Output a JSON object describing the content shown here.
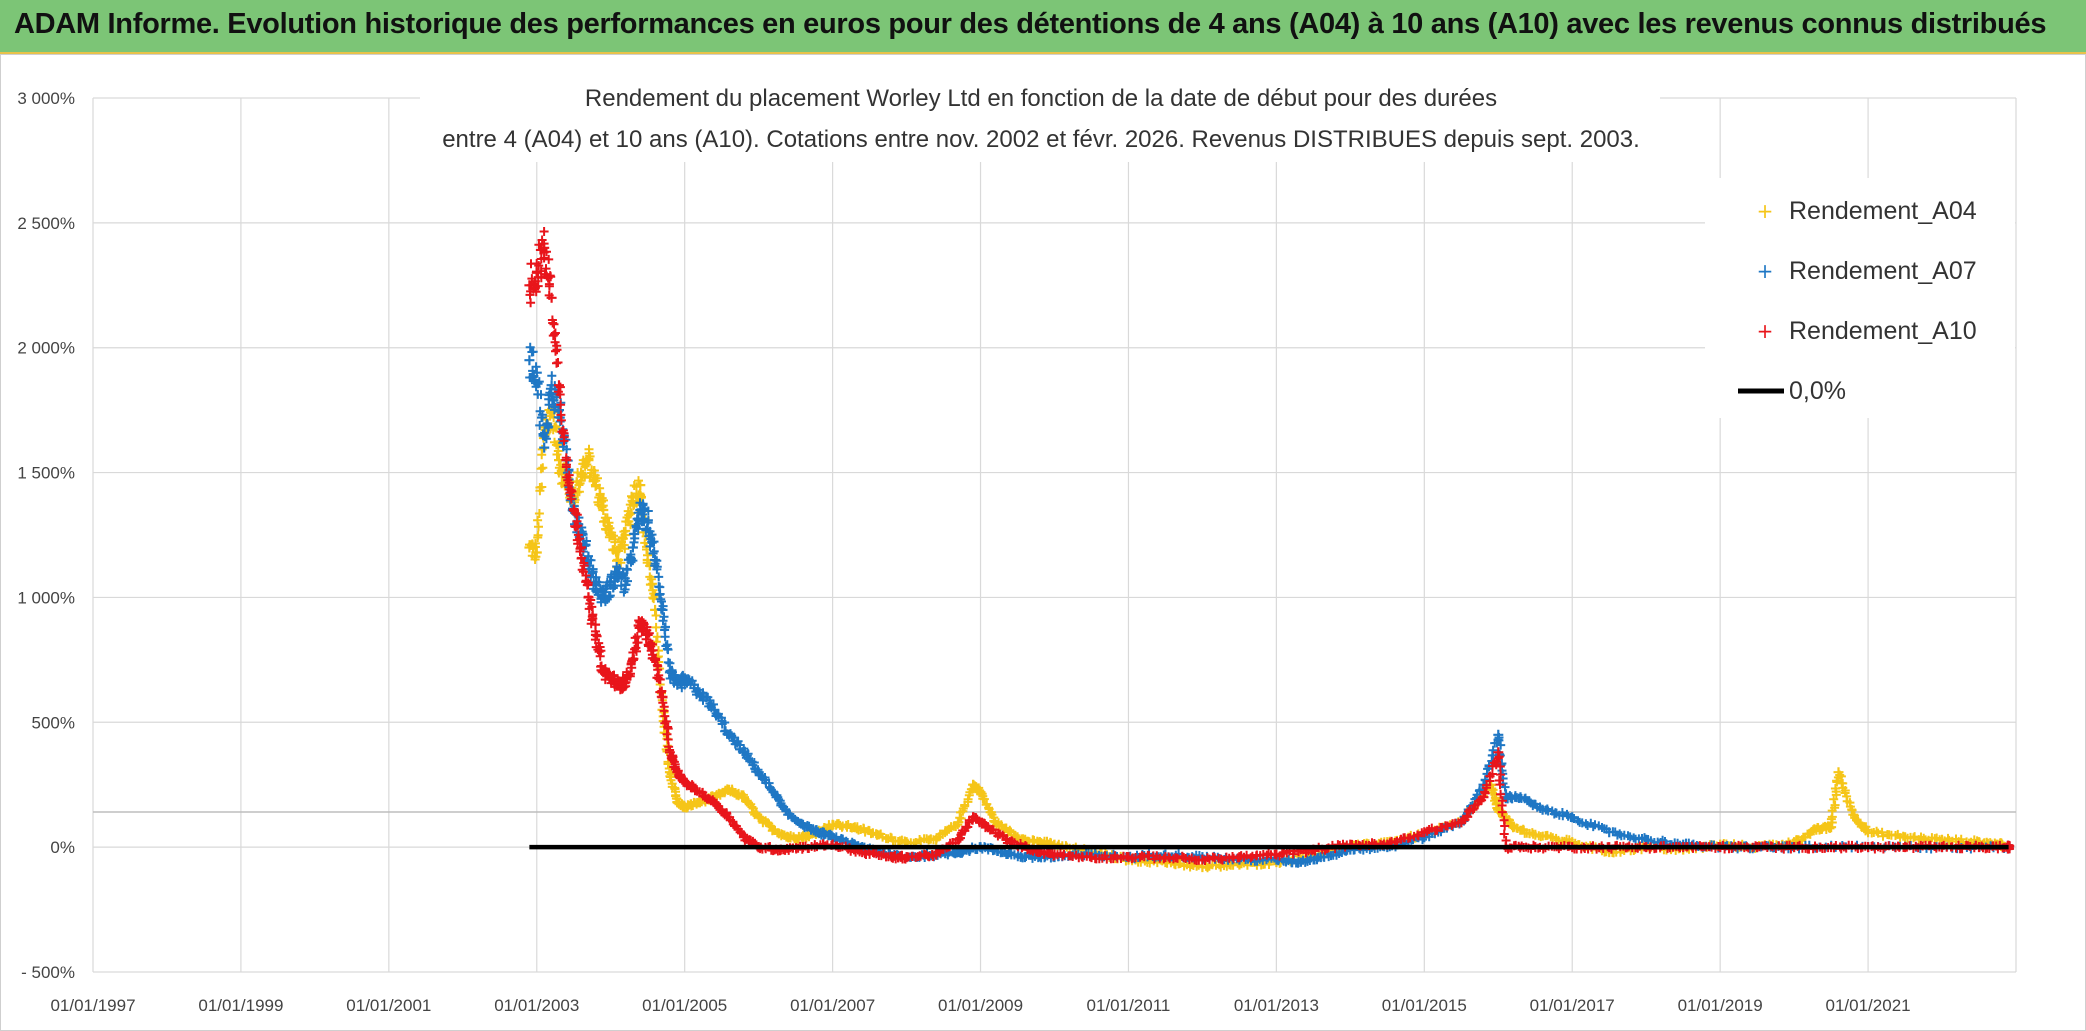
{
  "header": {
    "title": "ADAM Informe. Evolution historique des performances en euros pour des détentions de 4 ans (A04) à 10 ans (A10) avec les revenus connus distribués"
  },
  "chart_data": {
    "type": "scatter",
    "title_lines": [
      "Rendement du placement Worley Ltd en fonction de la date de début pour des durées",
      "entre 4 (A04) et 10 ans (A10). Cotations entre nov. 2002 et févr. 2026. Revenus DISTRIBUES depuis sept. 2003."
    ],
    "x_axis": {
      "min_year": 1997.0,
      "max_year": 2023.0,
      "tick_labels": [
        "01/01/1997",
        "01/01/1999",
        "01/01/2001",
        "01/01/2003",
        "01/01/2005",
        "01/01/2007",
        "01/01/2009",
        "01/01/2011",
        "01/01/2013",
        "01/01/2015",
        "01/01/2017",
        "01/01/2019",
        "01/01/2021"
      ],
      "tick_years": [
        1997,
        1999,
        2001,
        2003,
        2005,
        2007,
        2009,
        2011,
        2013,
        2015,
        2017,
        2019,
        2021
      ]
    },
    "y_axis": {
      "min": -500,
      "max": 3000,
      "tick_values": [
        -500,
        0,
        500,
        1000,
        1500,
        2000,
        2500,
        3000
      ],
      "tick_labels": [
        "- 500%",
        "0%",
        "500%",
        "1 000%",
        "1 500%",
        "2 000%",
        "2 500%",
        "3 000%"
      ]
    },
    "grid": true,
    "legend_position": "top-right",
    "series": [
      {
        "name": "Rendement_A04",
        "color": "#f5c518",
        "marker": "plus",
        "points": [
          [
            2002.9,
            1200
          ],
          [
            2003.0,
            1180
          ],
          [
            2003.1,
            1650
          ],
          [
            2003.2,
            1750
          ],
          [
            2003.3,
            1550
          ],
          [
            2003.4,
            1450
          ],
          [
            2003.5,
            1400
          ],
          [
            2003.6,
            1500
          ],
          [
            2003.7,
            1550
          ],
          [
            2003.8,
            1450
          ],
          [
            2003.9,
            1350
          ],
          [
            2004.0,
            1250
          ],
          [
            2004.1,
            1150
          ],
          [
            2004.2,
            1250
          ],
          [
            2004.3,
            1400
          ],
          [
            2004.4,
            1450
          ],
          [
            2004.5,
            1150
          ],
          [
            2004.6,
            950
          ],
          [
            2004.7,
            550
          ],
          [
            2004.8,
            300
          ],
          [
            2004.9,
            180
          ],
          [
            2005.0,
            160
          ],
          [
            2005.2,
            180
          ],
          [
            2005.4,
            200
          ],
          [
            2005.6,
            230
          ],
          [
            2005.8,
            200
          ],
          [
            2006.0,
            120
          ],
          [
            2006.2,
            70
          ],
          [
            2006.4,
            40
          ],
          [
            2006.6,
            40
          ],
          [
            2006.8,
            60
          ],
          [
            2007.0,
            90
          ],
          [
            2007.3,
            80
          ],
          [
            2007.6,
            50
          ],
          [
            2008.0,
            20
          ],
          [
            2008.4,
            30
          ],
          [
            2008.7,
            100
          ],
          [
            2008.9,
            250
          ],
          [
            2009.0,
            220
          ],
          [
            2009.2,
            100
          ],
          [
            2009.5,
            40
          ],
          [
            2009.8,
            20
          ],
          [
            2010.0,
            10
          ],
          [
            2010.5,
            -20
          ],
          [
            2011.0,
            -50
          ],
          [
            2011.5,
            -60
          ],
          [
            2012.0,
            -80
          ],
          [
            2012.5,
            -70
          ],
          [
            2013.0,
            -60
          ],
          [
            2013.5,
            -30
          ],
          [
            2014.0,
            0
          ],
          [
            2014.5,
            20
          ],
          [
            2015.0,
            50
          ],
          [
            2015.5,
            100
          ],
          [
            2015.9,
            250
          ],
          [
            2016.0,
            150
          ],
          [
            2016.2,
            80
          ],
          [
            2016.5,
            50
          ],
          [
            2017.0,
            20
          ],
          [
            2017.5,
            -20
          ],
          [
            2018.0,
            0
          ],
          [
            2018.5,
            -10
          ],
          [
            2019.0,
            10
          ],
          [
            2019.5,
            0
          ],
          [
            2020.0,
            20
          ],
          [
            2020.3,
            70
          ],
          [
            2020.5,
            80
          ],
          [
            2020.6,
            300
          ],
          [
            2020.8,
            130
          ],
          [
            2021.0,
            60
          ],
          [
            2021.5,
            40
          ],
          [
            2022.0,
            30
          ],
          [
            2022.5,
            20
          ],
          [
            2022.8,
            10
          ]
        ]
      },
      {
        "name": "Rendement_A07",
        "color": "#1f77c4",
        "marker": "plus",
        "points": [
          [
            2002.9,
            1950
          ],
          [
            2003.0,
            1900
          ],
          [
            2003.1,
            1600
          ],
          [
            2003.2,
            1850
          ],
          [
            2003.3,
            1750
          ],
          [
            2003.4,
            1550
          ],
          [
            2003.5,
            1350
          ],
          [
            2003.6,
            1250
          ],
          [
            2003.7,
            1150
          ],
          [
            2003.8,
            1050
          ],
          [
            2003.9,
            1000
          ],
          [
            2004.0,
            1050
          ],
          [
            2004.1,
            1100
          ],
          [
            2004.2,
            1050
          ],
          [
            2004.3,
            1200
          ],
          [
            2004.4,
            1350
          ],
          [
            2004.5,
            1300
          ],
          [
            2004.6,
            1150
          ],
          [
            2004.7,
            950
          ],
          [
            2004.8,
            700
          ],
          [
            2004.9,
            650
          ],
          [
            2005.0,
            670
          ],
          [
            2005.2,
            620
          ],
          [
            2005.4,
            550
          ],
          [
            2005.6,
            450
          ],
          [
            2005.8,
            380
          ],
          [
            2006.0,
            300
          ],
          [
            2006.2,
            220
          ],
          [
            2006.4,
            130
          ],
          [
            2006.6,
            90
          ],
          [
            2006.8,
            60
          ],
          [
            2007.0,
            40
          ],
          [
            2007.3,
            10
          ],
          [
            2007.6,
            -20
          ],
          [
            2008.0,
            -40
          ],
          [
            2008.4,
            -30
          ],
          [
            2008.7,
            -20
          ],
          [
            2009.0,
            0
          ],
          [
            2009.3,
            -20
          ],
          [
            2009.6,
            -40
          ],
          [
            2010.0,
            -40
          ],
          [
            2010.5,
            -30
          ],
          [
            2011.0,
            -40
          ],
          [
            2011.5,
            -30
          ],
          [
            2012.0,
            -40
          ],
          [
            2012.5,
            -50
          ],
          [
            2013.0,
            -50
          ],
          [
            2013.3,
            -60
          ],
          [
            2013.6,
            -40
          ],
          [
            2014.0,
            -10
          ],
          [
            2014.5,
            0
          ],
          [
            2015.0,
            40
          ],
          [
            2015.5,
            100
          ],
          [
            2015.8,
            250
          ],
          [
            2016.0,
            450
          ],
          [
            2016.1,
            200
          ],
          [
            2016.3,
            200
          ],
          [
            2016.6,
            150
          ],
          [
            2017.0,
            120
          ],
          [
            2017.5,
            60
          ],
          [
            2018.0,
            30
          ],
          [
            2018.5,
            10
          ],
          [
            2019.0,
            0
          ],
          [
            2019.5,
            0
          ],
          [
            2020.0,
            0
          ],
          [
            2021.0,
            0
          ],
          [
            2022.0,
            0
          ],
          [
            2022.9,
            0
          ]
        ]
      },
      {
        "name": "Rendement_A10",
        "color": "#e8151b",
        "marker": "plus",
        "points": [
          [
            2002.9,
            2250
          ],
          [
            2003.0,
            2300
          ],
          [
            2003.1,
            2400
          ],
          [
            2003.2,
            2200
          ],
          [
            2003.3,
            1850
          ],
          [
            2003.4,
            1550
          ],
          [
            2003.5,
            1350
          ],
          [
            2003.6,
            1200
          ],
          [
            2003.7,
            1000
          ],
          [
            2003.8,
            850
          ],
          [
            2003.9,
            700
          ],
          [
            2004.0,
            680
          ],
          [
            2004.1,
            650
          ],
          [
            2004.2,
            660
          ],
          [
            2004.3,
            750
          ],
          [
            2004.4,
            900
          ],
          [
            2004.5,
            850
          ],
          [
            2004.6,
            750
          ],
          [
            2004.7,
            600
          ],
          [
            2004.8,
            380
          ],
          [
            2004.9,
            300
          ],
          [
            2005.0,
            260
          ],
          [
            2005.2,
            220
          ],
          [
            2005.4,
            180
          ],
          [
            2005.6,
            120
          ],
          [
            2005.8,
            40
          ],
          [
            2006.0,
            0
          ],
          [
            2006.3,
            -10
          ],
          [
            2006.6,
            0
          ],
          [
            2007.0,
            10
          ],
          [
            2007.4,
            -20
          ],
          [
            2007.8,
            -40
          ],
          [
            2008.0,
            -40
          ],
          [
            2008.4,
            -30
          ],
          [
            2008.7,
            30
          ],
          [
            2008.9,
            120
          ],
          [
            2009.1,
            80
          ],
          [
            2009.4,
            20
          ],
          [
            2009.7,
            -10
          ],
          [
            2010.0,
            -30
          ],
          [
            2010.5,
            -40
          ],
          [
            2011.0,
            -40
          ],
          [
            2011.5,
            -40
          ],
          [
            2012.0,
            -50
          ],
          [
            2012.5,
            -40
          ],
          [
            2013.0,
            -30
          ],
          [
            2013.5,
            -10
          ],
          [
            2014.0,
            10
          ],
          [
            2014.5,
            10
          ],
          [
            2015.0,
            60
          ],
          [
            2015.5,
            100
          ],
          [
            2015.8,
            200
          ],
          [
            2016.0,
            380
          ],
          [
            2016.1,
            0
          ],
          [
            2016.5,
            0
          ],
          [
            2017.0,
            0
          ],
          [
            2017.5,
            0
          ],
          [
            2018.0,
            0
          ],
          [
            2018.5,
            0
          ],
          [
            2019.0,
            0
          ],
          [
            2019.5,
            0
          ],
          [
            2020.0,
            0
          ],
          [
            2020.5,
            0
          ],
          [
            2021.0,
            0
          ],
          [
            2021.5,
            0
          ],
          [
            2022.0,
            0
          ],
          [
            2022.5,
            0
          ],
          [
            2022.9,
            0
          ]
        ]
      }
    ],
    "reference_line": {
      "name": "0,0%",
      "color": "#000000",
      "y": 0,
      "x_start": 2002.9,
      "x_end": 2022.9
    }
  }
}
